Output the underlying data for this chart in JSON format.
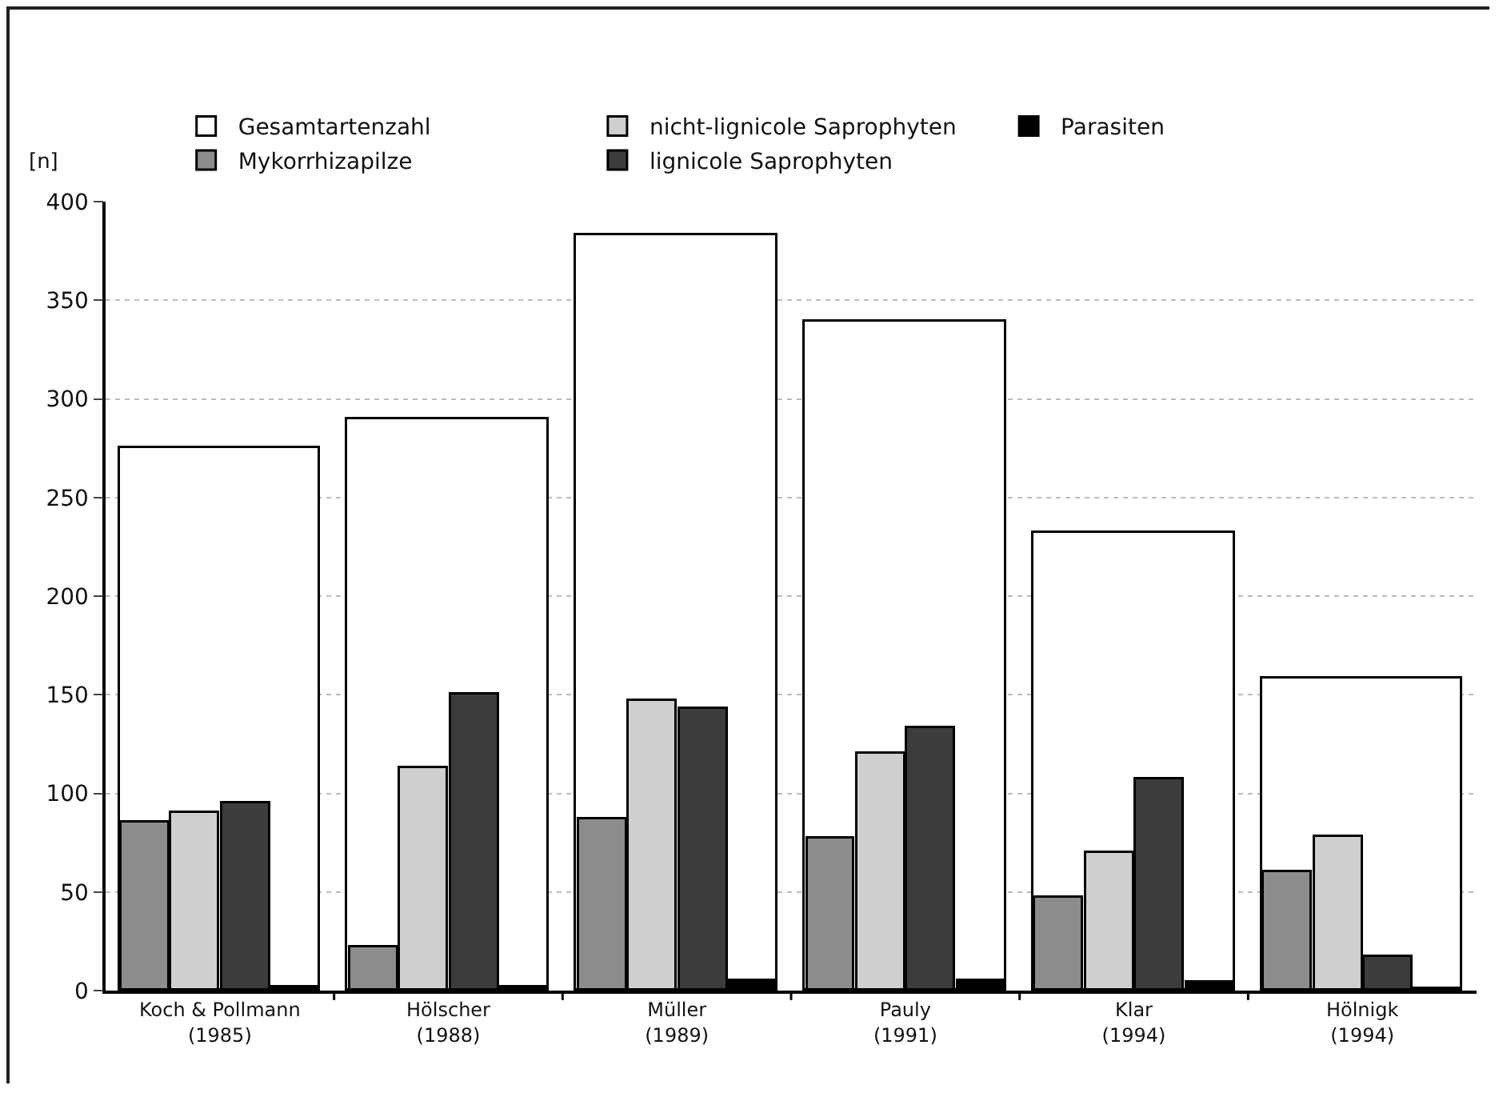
{
  "chart_data": {
    "type": "bar",
    "ylabel": "[n]",
    "categories": [
      "Koch & Pollmann\n(1985)",
      "Hölscher\n(1988)",
      "Müller\n(1989)",
      "Pauly\n(1991)",
      "Klar\n(1994)",
      "Hölnigk\n(1994)"
    ],
    "series": [
      {
        "name": "Gesamtartenzahl",
        "color": "#ffffff",
        "values": [
          275,
          290,
          383,
          339,
          232,
          158
        ]
      },
      {
        "name": "Mykorrhizapilze",
        "color": "#8c8c8c",
        "values": [
          85,
          22,
          87,
          77,
          47,
          60
        ]
      },
      {
        "name": "nicht-lignicole Saprophyten",
        "color": "#cfcfcf",
        "values": [
          90,
          113,
          147,
          120,
          70,
          78
        ]
      },
      {
        "name": "lignicole Saprophyten",
        "color": "#3c3c3c",
        "values": [
          95,
          150,
          143,
          133,
          107,
          17
        ]
      },
      {
        "name": "Parasiten",
        "color": "#000000",
        "values": [
          2,
          2,
          5,
          5,
          4,
          1
        ]
      }
    ],
    "ylim": [
      0,
      400
    ],
    "yticks": [
      0,
      50,
      100,
      150,
      200,
      250,
      300,
      350,
      400
    ],
    "grid": "y",
    "legend": "top"
  }
}
